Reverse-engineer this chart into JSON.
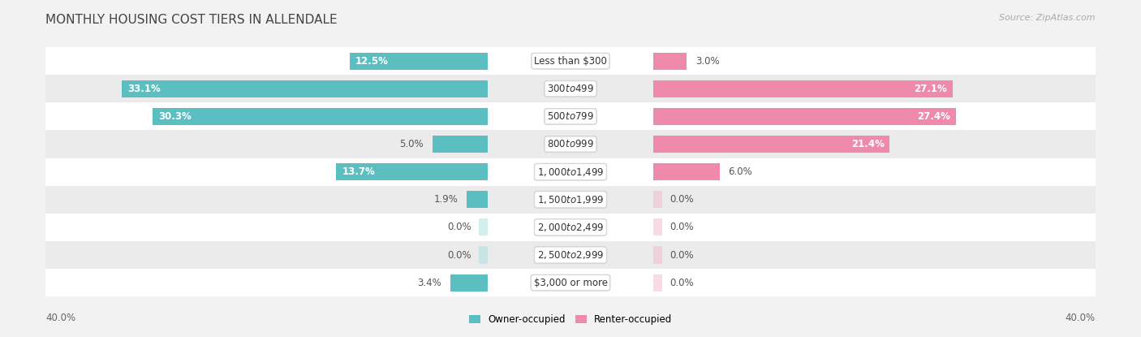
{
  "title": "MONTHLY HOUSING COST TIERS IN ALLENDALE",
  "source": "Source: ZipAtlas.com",
  "categories": [
    "Less than $300",
    "$300 to $499",
    "$500 to $799",
    "$800 to $999",
    "$1,000 to $1,499",
    "$1,500 to $1,999",
    "$2,000 to $2,499",
    "$2,500 to $2,999",
    "$3,000 or more"
  ],
  "owner_values": [
    12.5,
    33.1,
    30.3,
    5.0,
    13.7,
    1.9,
    0.0,
    0.0,
    3.4
  ],
  "renter_values": [
    3.0,
    27.1,
    27.4,
    21.4,
    6.0,
    0.0,
    0.0,
    0.0,
    0.0
  ],
  "owner_color": "#5bbfc2",
  "renter_color": "#f08aaa",
  "owner_color_light": "#a8dfe0",
  "renter_color_light": "#f5b8cc",
  "owner_label": "Owner-occupied",
  "renter_label": "Renter-occupied",
  "max_val": 40.0,
  "axis_label_left": "40.0%",
  "axis_label_right": "40.0%",
  "bg_color": "#f2f2f2",
  "row_colors": [
    "#ffffff",
    "#ebebeb"
  ],
  "title_fontsize": 11,
  "source_fontsize": 8,
  "label_fontsize": 8.5,
  "category_fontsize": 8.5,
  "bar_height": 0.62,
  "value_label_threshold": 10.0
}
